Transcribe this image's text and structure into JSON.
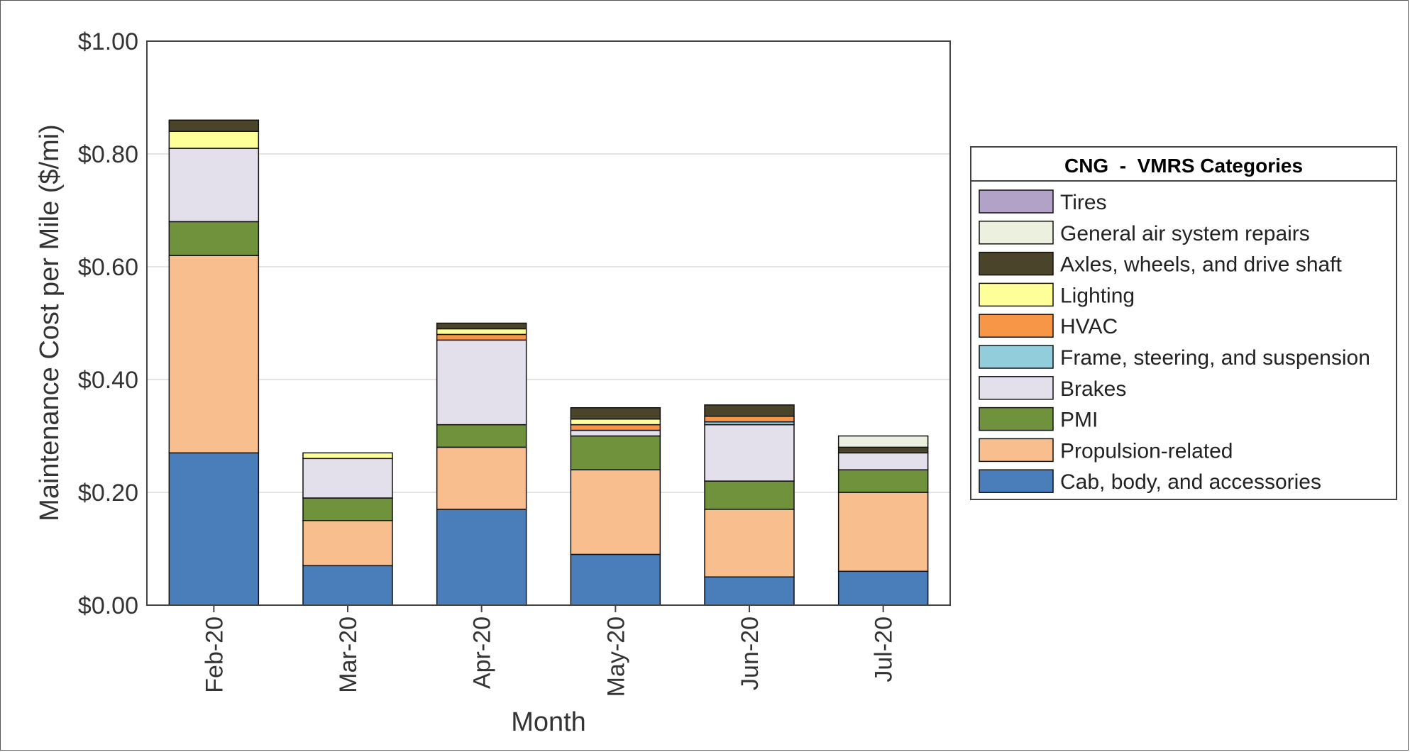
{
  "chart_data": {
    "type": "bar",
    "stacked": true,
    "categories": [
      "Feb-20",
      "Mar-20",
      "Apr-20",
      "May-20",
      "Jun-20",
      "Jul-20"
    ],
    "xlabel": "Month",
    "ylabel": "Maintenance Cost per Mile ($/mi)",
    "ylim": [
      0,
      1.0
    ],
    "yticks": [
      "$0.00",
      "$0.20",
      "$0.40",
      "$0.60",
      "$0.80",
      "$1.00"
    ],
    "ytick_values": [
      0,
      0.2,
      0.4,
      0.6,
      0.8,
      1.0
    ],
    "grid": true,
    "legend": {
      "title": "CNG  -  VMRS Categories",
      "placement": "right"
    },
    "series": [
      {
        "name": "Cab, body, and accessories",
        "color": "#4a7eba",
        "values": [
          0.27,
          0.07,
          0.17,
          0.09,
          0.05,
          0.06
        ]
      },
      {
        "name": "Propulsion-related",
        "color": "#f8be8e",
        "values": [
          0.35,
          0.08,
          0.11,
          0.15,
          0.12,
          0.14
        ]
      },
      {
        "name": "PMI",
        "color": "#71923d",
        "values": [
          0.06,
          0.04,
          0.04,
          0.06,
          0.05,
          0.04
        ]
      },
      {
        "name": "Brakes",
        "color": "#e3e0ec",
        "values": [
          0.13,
          0.07,
          0.15,
          0.01,
          0.1,
          0.03
        ]
      },
      {
        "name": "Frame, steering, and suspension",
        "color": "#92cddc",
        "values": [
          0.0,
          0.0,
          0.0,
          0.0,
          0.005,
          0.0
        ]
      },
      {
        "name": "HVAC",
        "color": "#f79646",
        "values": [
          0.0,
          0.0,
          0.01,
          0.01,
          0.01,
          0.0
        ]
      },
      {
        "name": "Lighting",
        "color": "#ffff99",
        "values": [
          0.03,
          0.01,
          0.01,
          0.01,
          0.0,
          0.0
        ]
      },
      {
        "name": "Axles, wheels, and drive shaft",
        "color": "#4a452a",
        "values": [
          0.02,
          0.0,
          0.01,
          0.02,
          0.02,
          0.01
        ]
      },
      {
        "name": "General air system repairs",
        "color": "#ebf1de",
        "values": [
          0.0,
          0.0,
          0.0,
          0.0,
          0.0,
          0.02
        ]
      },
      {
        "name": "Tires",
        "color": "#b3a2c7",
        "values": [
          0.0,
          0.0,
          0.0,
          0.0,
          0.0,
          0.0
        ]
      }
    ]
  }
}
